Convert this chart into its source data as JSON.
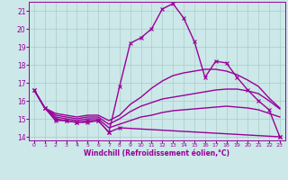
{
  "title": "",
  "xlabel": "Windchill (Refroidissement éolien,°C)",
  "bg_color": "#cce8e8",
  "line_color": "#990099",
  "grid_color": "#aacccc",
  "xlim": [
    -0.5,
    23.5
  ],
  "ylim": [
    13.8,
    21.5
  ],
  "yticks": [
    14,
    15,
    16,
    17,
    18,
    19,
    20,
    21
  ],
  "xticks": [
    0,
    1,
    2,
    3,
    4,
    5,
    6,
    7,
    8,
    9,
    10,
    11,
    12,
    13,
    14,
    15,
    16,
    17,
    18,
    19,
    20,
    21,
    22,
    23
  ],
  "series": [
    {
      "x": [
        0,
        1,
        2,
        3,
        4,
        5,
        6,
        7,
        8,
        23
      ],
      "y": [
        16.6,
        15.6,
        15.0,
        14.9,
        14.8,
        14.9,
        14.9,
        14.25,
        14.5,
        14.0
      ],
      "marker": "x",
      "linewidth": 1.0
    },
    {
      "x": [
        0,
        1,
        2,
        3,
        4,
        5,
        6,
        7,
        8,
        9,
        10,
        11,
        12,
        13,
        14,
        15,
        16,
        17,
        18,
        19,
        20,
        21,
        22,
        23
      ],
      "y": [
        16.6,
        15.6,
        15.1,
        15.0,
        14.9,
        15.0,
        15.0,
        14.5,
        14.7,
        14.9,
        15.1,
        15.2,
        15.35,
        15.45,
        15.5,
        15.55,
        15.6,
        15.65,
        15.7,
        15.65,
        15.6,
        15.5,
        15.3,
        15.1
      ],
      "marker": null,
      "linewidth": 1.0
    },
    {
      "x": [
        0,
        1,
        2,
        3,
        4,
        5,
        6,
        7,
        8,
        9,
        10,
        11,
        12,
        13,
        14,
        15,
        16,
        17,
        18,
        19,
        20,
        21,
        22,
        23
      ],
      "y": [
        16.6,
        15.6,
        15.2,
        15.1,
        15.0,
        15.1,
        15.1,
        14.7,
        15.0,
        15.4,
        15.7,
        15.9,
        16.1,
        16.2,
        16.3,
        16.4,
        16.5,
        16.6,
        16.65,
        16.65,
        16.55,
        16.4,
        16.0,
        15.55
      ],
      "marker": null,
      "linewidth": 1.0
    },
    {
      "x": [
        0,
        1,
        2,
        3,
        4,
        5,
        6,
        7,
        8,
        9,
        10,
        11,
        12,
        13,
        14,
        15,
        16,
        17,
        18,
        19,
        20,
        21,
        22,
        23
      ],
      "y": [
        16.6,
        15.6,
        15.3,
        15.2,
        15.1,
        15.2,
        15.2,
        14.9,
        15.2,
        15.8,
        16.2,
        16.7,
        17.1,
        17.4,
        17.55,
        17.65,
        17.75,
        17.75,
        17.65,
        17.45,
        17.15,
        16.8,
        16.15,
        15.6
      ],
      "marker": null,
      "linewidth": 1.0
    },
    {
      "x": [
        0,
        1,
        2,
        3,
        4,
        5,
        6,
        7,
        8,
        9,
        10,
        11,
        12,
        13,
        14,
        15,
        16,
        17,
        18,
        19,
        20,
        21,
        22,
        23
      ],
      "y": [
        16.6,
        15.6,
        14.9,
        14.9,
        14.8,
        14.8,
        14.9,
        14.25,
        16.8,
        19.2,
        19.5,
        20.0,
        21.1,
        21.4,
        20.6,
        19.3,
        17.3,
        18.2,
        18.1,
        17.3,
        16.6,
        16.0,
        15.5,
        14.0
      ],
      "marker": "x",
      "linewidth": 1.0
    }
  ]
}
